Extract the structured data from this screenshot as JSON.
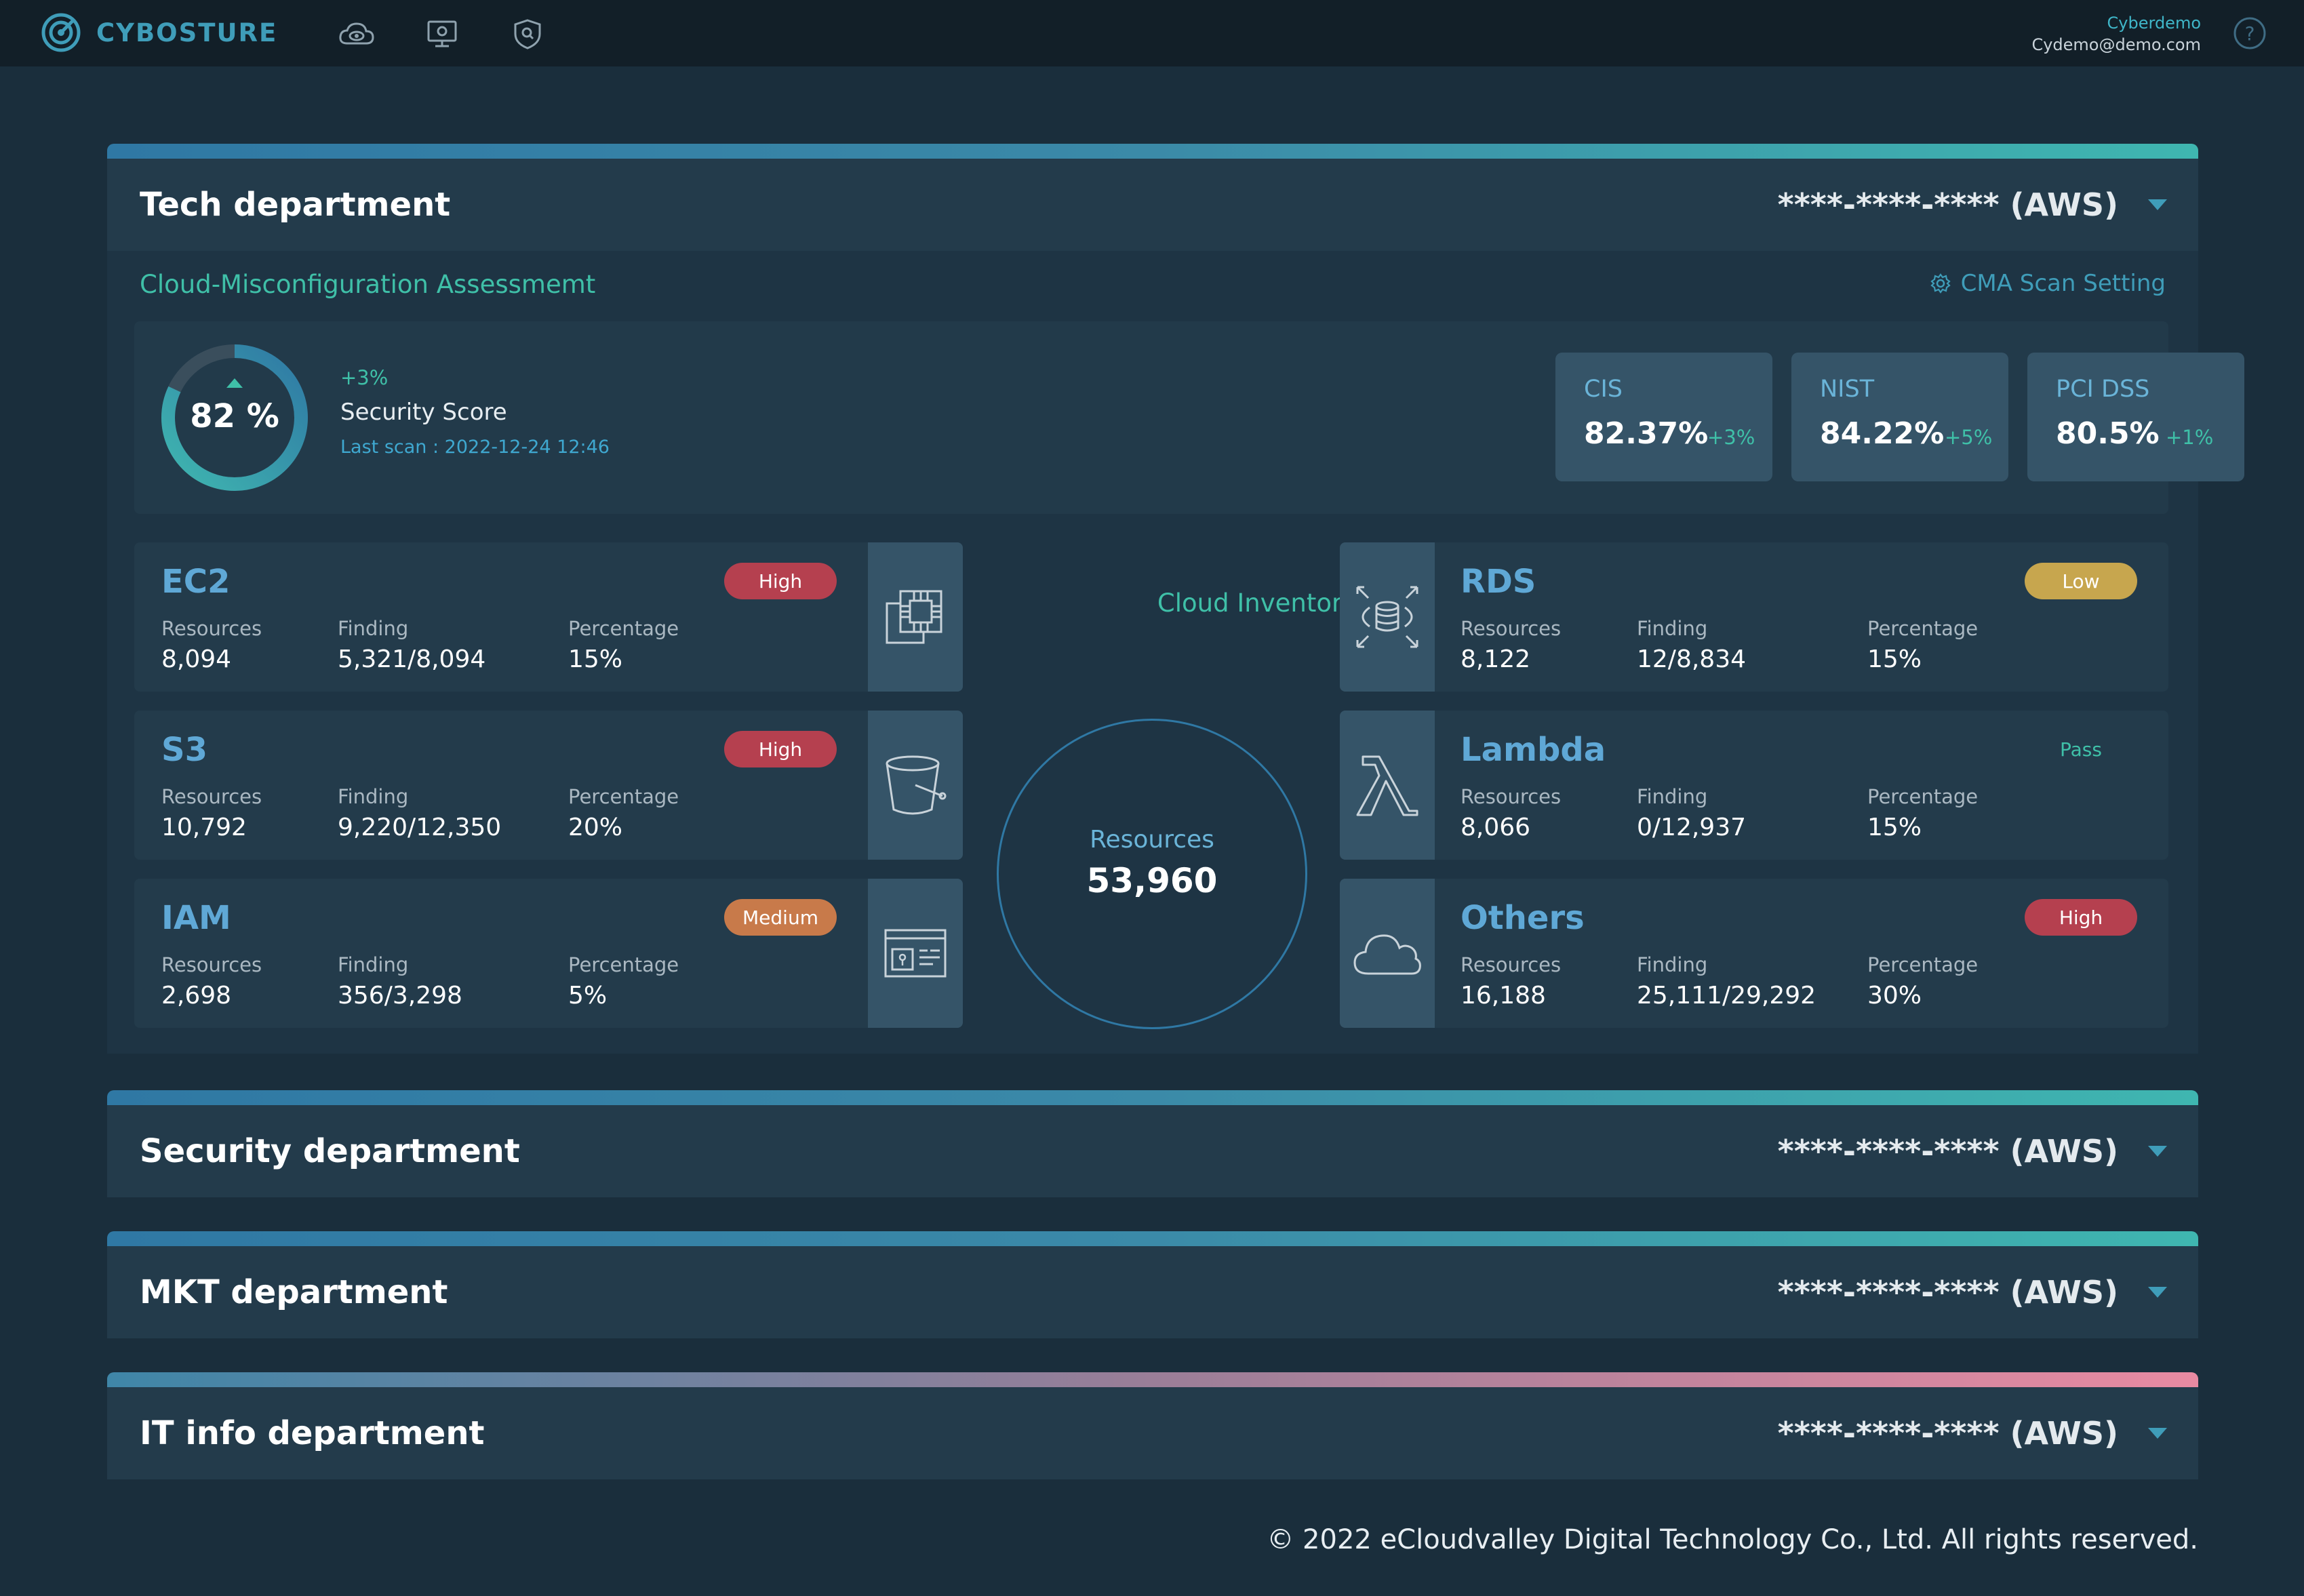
{
  "app": {
    "brand": "CYBOSTURE"
  },
  "user": {
    "name": "Cyberdemo",
    "email": "Cydemo@demo.com"
  },
  "nav": [
    {
      "icon": "cloud-eye-icon"
    },
    {
      "icon": "monitor-icon"
    },
    {
      "icon": "shield-icon"
    }
  ],
  "departments": [
    {
      "title": "Tech department",
      "account": "****-****-**** (AWS)",
      "expanded": true
    },
    {
      "title": "Security department",
      "account": "****-****-**** (AWS)",
      "expanded": false
    },
    {
      "title": "MKT department",
      "account": "****-****-**** (AWS)",
      "expanded": false
    },
    {
      "title": "IT info department",
      "account": "****-****-**** (AWS)",
      "expanded": false
    }
  ],
  "cma": {
    "title": "Cloud-Misconfiguration Assessmemt",
    "setting_label": "CMA Scan Setting",
    "score": {
      "value": "82 %",
      "level": 0.82,
      "delta": "+3%",
      "label": "Security Score",
      "last_scan": "Last scan : 2022-12-24  12:46"
    },
    "compliance": [
      {
        "name": "CIS",
        "value": "82.37%",
        "delta": "+3%"
      },
      {
        "name": "NIST",
        "value": "84.22%",
        "delta": "+5%"
      },
      {
        "name": "PCI DSS",
        "value": "80.5%",
        "delta": "+1%"
      }
    ]
  },
  "labels": {
    "resources": "Resources",
    "finding": "Finding",
    "percentage": "Percentage"
  },
  "services_left": [
    {
      "name": "EC2",
      "severity": "High",
      "resources": "8,094",
      "finding": "5,321/8,094",
      "percentage": "15%",
      "icon": "cpu-chip-icon"
    },
    {
      "name": "S3",
      "severity": "High",
      "resources": "10,792",
      "finding": "9,220/12,350",
      "percentage": "20%",
      "icon": "bucket-icon"
    },
    {
      "name": "IAM",
      "severity": "Medium",
      "resources": "2,698",
      "finding": "356/3,298",
      "percentage": "5%",
      "icon": "id-card-icon"
    }
  ],
  "services_right": [
    {
      "name": "RDS",
      "severity": "Low",
      "resources": "8,122",
      "finding": "12/8,834",
      "percentage": "15%",
      "icon": "database-icon"
    },
    {
      "name": "Lambda",
      "severity": "Pass",
      "resources": "8,066",
      "finding": "0/12,937",
      "percentage": "15%",
      "icon": "lambda-icon"
    },
    {
      "name": "Others",
      "severity": "High",
      "resources": "16,188",
      "finding": "25,111/29,292",
      "percentage": "30%",
      "icon": "cloud-icon"
    }
  ],
  "severity_colors": {
    "High": "#b5404f",
    "Medium": "#c87a4a",
    "Low": "#c7a64e",
    "Pass": "transparent"
  },
  "inventory": {
    "title": "Cloud Inventory",
    "label": "Resources",
    "value": "53,960"
  },
  "footer": "© 2022 eCloudvalley Digital Technology Co., Ltd. All rights reserved."
}
